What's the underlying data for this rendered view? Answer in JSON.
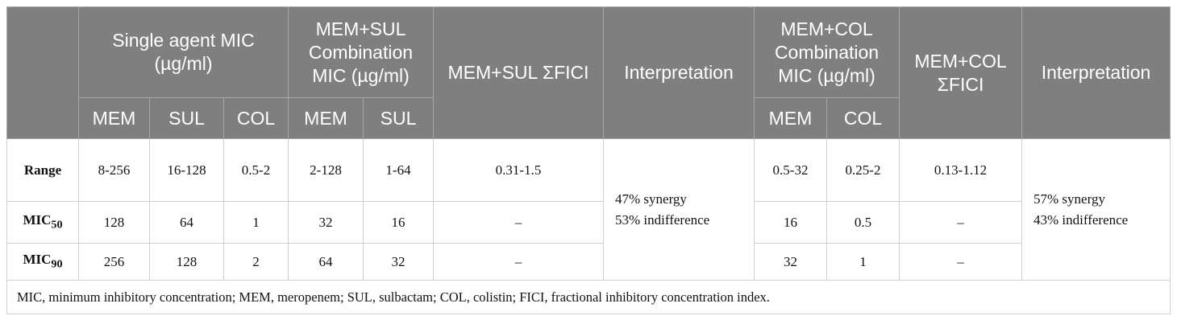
{
  "table": {
    "header": {
      "group1": "Single agent MIC (µg/ml)",
      "group2": "MEM+SUL Combination MIC (µg/ml)",
      "fici1": "MEM+SUL ΣFICI",
      "interp1": "Interpretation",
      "group3": "MEM+COL Combination MIC (µg/ml)",
      "fici2": "MEM+COL ΣFICI",
      "interp2": "Interpretation",
      "sub": [
        "MEM",
        "SUL",
        "COL",
        "MEM",
        "SUL",
        "MEM",
        "COL"
      ]
    },
    "rows": [
      {
        "label": "Range",
        "cells": [
          "8-256",
          "16-128",
          "0.5-2",
          "2-128",
          "1-64",
          "0.31-1.5",
          "0.5-32",
          "0.25-2",
          "0.13-1.12"
        ]
      },
      {
        "label": "MIC",
        "label_sub": "50",
        "cells": [
          "128",
          "64",
          "1",
          "32",
          "16",
          "–",
          "16",
          "0.5",
          "–"
        ]
      },
      {
        "label": "MIC",
        "label_sub": "90",
        "cells": [
          "256",
          "128",
          "2",
          "64",
          "32",
          "–",
          "32",
          "1",
          "–"
        ]
      }
    ],
    "interpretation1": [
      "47% synergy",
      "53% indifference"
    ],
    "interpretation2": [
      "57% synergy",
      "43% indifference"
    ],
    "footnote": "MIC, minimum inhibitory concentration; MEM, meropenem; SUL, sulbactam; COL, colistin; FICI, fractional inhibitory concentration index."
  }
}
